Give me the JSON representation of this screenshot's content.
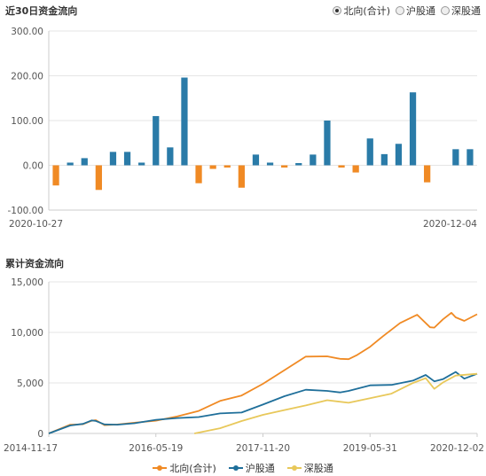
{
  "top": {
    "title": "近30日资金流向",
    "radios": [
      {
        "label": "北向(合计)",
        "selected": true
      },
      {
        "label": "沪股通",
        "selected": false
      },
      {
        "label": "深股通",
        "selected": false
      }
    ]
  },
  "bottom": {
    "title": "累计资金流向",
    "legend": [
      "北向(合计)",
      "沪股通",
      "深股通"
    ]
  },
  "colors": {
    "positive": "#2a7ba8",
    "negative": "#f08a24",
    "north": "#f08a24",
    "sh": "#1f6f9a",
    "sz": "#e8c85a",
    "grid": "#e5e5e5"
  },
  "chart_data": [
    {
      "type": "bar",
      "title": "近30日资金流向",
      "x_start_label": "2020-10-27",
      "x_end_label": "2020-12-04",
      "ylim": [
        -100,
        300
      ],
      "yticks": [
        "-100.00",
        "0.00",
        "100.00",
        "200.00",
        "300.00"
      ],
      "values": [
        -45,
        6,
        16,
        -55,
        30,
        30,
        6,
        110,
        40,
        196,
        -40,
        -8,
        -5,
        -50,
        24,
        6,
        -5,
        5,
        24,
        100,
        -5,
        -16,
        60,
        25,
        48,
        163,
        -38,
        0,
        36,
        36
      ]
    },
    {
      "type": "line",
      "title": "累计资金流向",
      "xticks": [
        "2014-11-17",
        "2016-05-19",
        "2017-11-20",
        "2019-05-31",
        "2020-12-02"
      ],
      "ylim": [
        0,
        15000
      ],
      "yticks": [
        "0",
        "5,000",
        "10,000",
        "15,000"
      ],
      "series": [
        {
          "name": "北向(合计)",
          "t": [
            0,
            0.05,
            0.08,
            0.1,
            0.11,
            0.13,
            0.16,
            0.2,
            0.25,
            0.3,
            0.35,
            0.4,
            0.45,
            0.5,
            0.55,
            0.6,
            0.65,
            0.68,
            0.7,
            0.72,
            0.75,
            0.78,
            0.82,
            0.86,
            0.89,
            0.9,
            0.92,
            0.94,
            0.95,
            0.97,
            1.0
          ],
          "values": [
            0,
            800,
            1000,
            1200,
            1300,
            900,
            800,
            1100,
            1300,
            1600,
            2300,
            3200,
            3700,
            5000,
            6200,
            7600,
            7700,
            7300,
            7400,
            7800,
            8500,
            9700,
            10900,
            11700,
            10600,
            10400,
            11300,
            12000,
            11400,
            11200,
            11800
          ]
        },
        {
          "name": "沪股通",
          "t": [
            0,
            0.05,
            0.08,
            0.1,
            0.11,
            0.13,
            0.16,
            0.2,
            0.25,
            0.3,
            0.35,
            0.4,
            0.45,
            0.5,
            0.55,
            0.6,
            0.65,
            0.68,
            0.7,
            0.75,
            0.8,
            0.85,
            0.88,
            0.9,
            0.92,
            0.95,
            0.97,
            1.0
          ],
          "values": [
            0,
            800,
            1000,
            1200,
            1300,
            900,
            800,
            1100,
            1300,
            1500,
            1700,
            1900,
            2100,
            2900,
            3600,
            4400,
            4200,
            4000,
            4300,
            4700,
            4800,
            5300,
            5700,
            5200,
            5400,
            6000,
            5500,
            5900
          ]
        },
        {
          "name": "深股通",
          "t": [
            0.34,
            0.4,
            0.45,
            0.5,
            0.55,
            0.6,
            0.65,
            0.7,
            0.75,
            0.8,
            0.85,
            0.88,
            0.9,
            0.92,
            0.95,
            1.0
          ],
          "values": [
            0,
            600,
            1200,
            1800,
            2400,
            2700,
            3300,
            3100,
            3400,
            4000,
            5000,
            5400,
            4500,
            5000,
            5700,
            5900
          ]
        }
      ]
    }
  ]
}
